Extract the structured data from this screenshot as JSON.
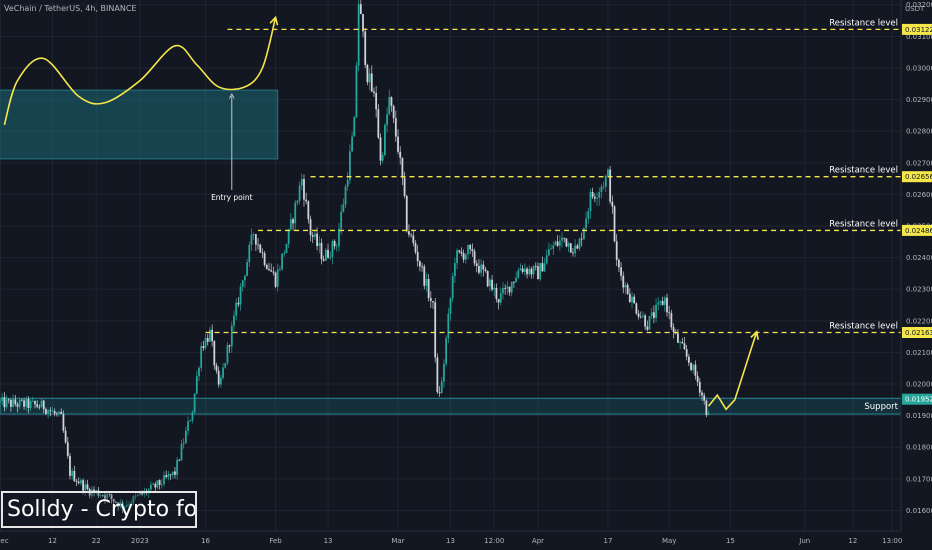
{
  "header": {
    "title": "VeChain / TetherUS, 4h, BINANCE",
    "currency": "USDT"
  },
  "watermark": "Solldy - Crypto for U",
  "colors": {
    "background": "#131722",
    "bull": "#26a69a",
    "bear": "#cfd2d8",
    "level": "#f5e64a",
    "zone": "#1c7a86",
    "current_price": "#26a69a"
  },
  "chart_data": {
    "type": "candlestick",
    "symbol": "VeChain / TetherUS",
    "interval": "4h",
    "exchange": "BINANCE",
    "y_axis": {
      "unit": "USDT",
      "range": [
        0.01535,
        0.03215
      ],
      "ticks": [
        "0.03200",
        "0.03100",
        "0.03000",
        "0.02900",
        "0.02800",
        "0.02700",
        "0.02600",
        "0.02500",
        "0.02400",
        "0.02300",
        "0.02200",
        "0.02100",
        "0.02000",
        "0.01900",
        "0.01800",
        "0.01700",
        "0.01600"
      ]
    },
    "x_axis": {
      "ticks": [
        {
          "label": "ec",
          "t": 0.1
        },
        {
          "label": "12",
          "t": 12
        },
        {
          "label": "22",
          "t": 22
        },
        {
          "label": "2023",
          "t": 32
        },
        {
          "label": "16",
          "t": 47
        },
        {
          "label": "Feb",
          "t": 63
        },
        {
          "label": "13",
          "t": 75
        },
        {
          "label": "Mar",
          "t": 91
        },
        {
          "label": "13",
          "t": 103
        },
        {
          "label": "12:00",
          "t": 113
        },
        {
          "label": "Apr",
          "t": 123
        },
        {
          "label": "17",
          "t": 139
        },
        {
          "label": "May",
          "t": 153
        },
        {
          "label": "15",
          "t": 167
        },
        {
          "label": "Jun",
          "t": 184
        },
        {
          "label": "12",
          "t": 195
        },
        {
          "label": "13:00",
          "t": 204
        }
      ]
    },
    "price_path": [
      [
        0,
        0.0194
      ],
      [
        6,
        0.01935
      ],
      [
        10,
        0.0193
      ],
      [
        14,
        0.0189
      ],
      [
        16,
        0.0172
      ],
      [
        20,
        0.01665
      ],
      [
        24,
        0.0165
      ],
      [
        28,
        0.01615
      ],
      [
        33,
        0.01655
      ],
      [
        36,
        0.0168
      ],
      [
        40,
        0.0172
      ],
      [
        44,
        0.0192
      ],
      [
        46,
        0.0212
      ],
      [
        48,
        0.0216
      ],
      [
        50,
        0.0198
      ],
      [
        55,
        0.023
      ],
      [
        58,
        0.0248
      ],
      [
        60,
        0.0241
      ],
      [
        63,
        0.0233
      ],
      [
        66,
        0.0247
      ],
      [
        69,
        0.0265
      ],
      [
        71,
        0.0248
      ],
      [
        74,
        0.024
      ],
      [
        77,
        0.0245
      ],
      [
        79,
        0.0262
      ],
      [
        81,
        0.0282
      ],
      [
        82,
        0.0321
      ],
      [
        84,
        0.0298
      ],
      [
        86,
        0.0288
      ],
      [
        87,
        0.027
      ],
      [
        89,
        0.029
      ],
      [
        91,
        0.0275
      ],
      [
        92,
        0.0264
      ],
      [
        93,
        0.025
      ],
      [
        96,
        0.0238
      ],
      [
        99,
        0.0224
      ],
      [
        100,
        0.0196
      ],
      [
        101,
        0.02
      ],
      [
        102,
        0.0214
      ],
      [
        104,
        0.024
      ],
      [
        107,
        0.0242
      ],
      [
        111,
        0.0234
      ],
      [
        114,
        0.0227
      ],
      [
        116,
        0.023
      ],
      [
        119,
        0.0237
      ],
      [
        123,
        0.0235
      ],
      [
        126,
        0.0243
      ],
      [
        129,
        0.0246
      ],
      [
        132,
        0.0242
      ],
      [
        135,
        0.0259
      ],
      [
        137,
        0.0262
      ],
      [
        139,
        0.0266
      ],
      [
        140,
        0.0254
      ],
      [
        141,
        0.0238
      ],
      [
        143,
        0.0231
      ],
      [
        145,
        0.0225
      ],
      [
        148,
        0.0219
      ],
      [
        150,
        0.0223
      ],
      [
        152,
        0.0227
      ],
      [
        154,
        0.0216
      ],
      [
        156,
        0.0211
      ],
      [
        158,
        0.0206
      ],
      [
        160,
        0.0199
      ],
      [
        162,
        0.01895
      ]
    ],
    "levels": [
      {
        "name": "Resistance level",
        "price": 0.03122,
        "price_label": "0.03122"
      },
      {
        "name": "Resistance level",
        "price": 0.02656,
        "price_label": "0.02656"
      },
      {
        "name": "Resistance level",
        "price": 0.02486,
        "price_label": "0.02486"
      },
      {
        "name": "Resistance level",
        "price": 0.02163,
        "price_label": "0.02163"
      }
    ],
    "support": {
      "name": "Support",
      "low": 0.01905,
      "high": 0.01955
    },
    "current_price": {
      "value": 0.01952,
      "label": "0.01952"
    },
    "annotations": {
      "entry_label": "Entry point",
      "entry_box": {
        "t_start": -2,
        "t_end": 63.5,
        "p_low": 0.02712,
        "p_high": 0.0293
      },
      "entry_arrow": {
        "t": 53,
        "p_from": 0.02715,
        "p_to": 0.0293
      },
      "sketch_curve": [
        [
          1,
          0.0282
        ],
        [
          4,
          0.0296
        ],
        [
          10,
          0.0303
        ],
        [
          18,
          0.0291
        ],
        [
          24,
          0.0289
        ],
        [
          32,
          0.0296
        ],
        [
          40,
          0.0307
        ],
        [
          45,
          0.0301
        ],
        [
          50,
          0.0294
        ],
        [
          56,
          0.0294
        ],
        [
          60,
          0.03
        ],
        [
          63,
          0.0316
        ]
      ],
      "projection": [
        [
          162,
          0.0193
        ],
        [
          164,
          0.01965
        ],
        [
          166,
          0.0192
        ],
        [
          168,
          0.0195
        ],
        [
          173,
          0.02165
        ]
      ]
    }
  }
}
